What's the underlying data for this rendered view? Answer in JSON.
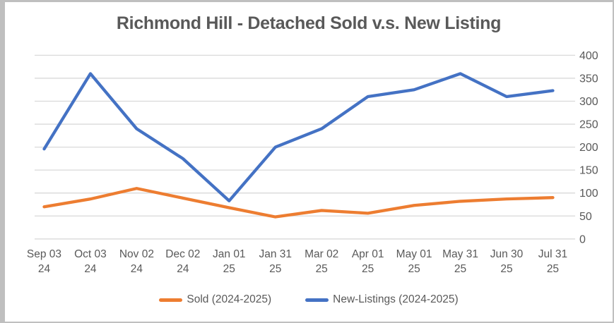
{
  "colors": {
    "sold": "#ED7D31",
    "new_listings": "#4472C4",
    "gridline": "#D9D9D9",
    "text": "#595959",
    "title_text": "#595959",
    "frame_border": "#BFBFBF",
    "background": "#FFFFFF"
  },
  "chart_data": {
    "type": "line",
    "title": "Richmond Hill - Detached Sold v.s. New Listing",
    "categories": [
      "Sep 03 24",
      "Oct 03 24",
      "Nov 02 24",
      "Dec 02 24",
      "Jan 01 25",
      "Jan 31 25",
      "Mar 02 25",
      "Apr 01 25",
      "May 01 25",
      "May 31 25",
      "Jun 30 25",
      "Jul 31 25"
    ],
    "series": [
      {
        "name": "Sold (2024-2025)",
        "color": "#ED7D31",
        "values": [
          70,
          87,
          110,
          89,
          68,
          48,
          62,
          56,
          73,
          82,
          87,
          90
        ]
      },
      {
        "name": "New-Listings (2024-2025)",
        "color": "#4472C4",
        "values": [
          196,
          360,
          240,
          175,
          83,
          200,
          240,
          310,
          325,
          360,
          310,
          323
        ]
      }
    ],
    "xlabel": "",
    "ylabel": "",
    "ylim": [
      0,
      400
    ],
    "yticks": [
      0,
      50,
      100,
      150,
      200,
      250,
      300,
      350,
      400
    ],
    "y_axis_side": "right",
    "grid": true,
    "legend_position": "bottom"
  }
}
